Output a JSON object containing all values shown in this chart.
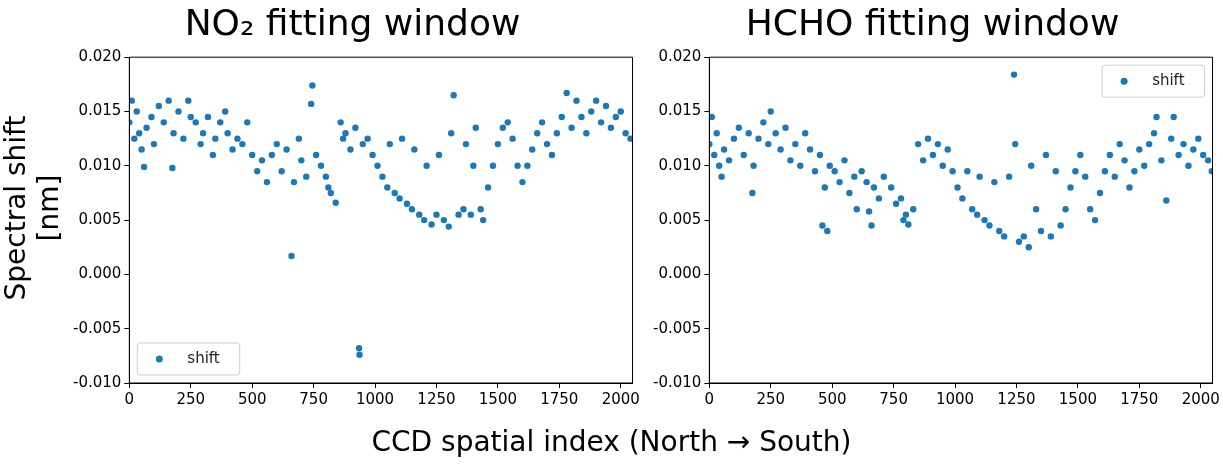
{
  "chart_data": [
    {
      "type": "scatter",
      "title": "NO₂ fitting window",
      "ylabel": "Spectral shift [nm]",
      "xlabel": "CCD spatial index (North → South)",
      "legend": "bottom left",
      "marker": "circle",
      "grid": false,
      "xlim": [
        0,
        2048
      ],
      "xticks": [
        0,
        250,
        500,
        750,
        1000,
        1250,
        1500,
        1750,
        2000
      ],
      "ylim": [
        -0.01,
        0.02
      ],
      "yticks": [
        {
          "value": -0.01,
          "label": "-0.010"
        },
        {
          "value": -0.005,
          "label": "-0.005"
        },
        {
          "value": 0,
          "label": "0.000"
        },
        {
          "value": 0.005,
          "label": "0.005"
        },
        {
          "value": 0.01,
          "label": "0.010"
        },
        {
          "value": 0.015,
          "label": "0.015"
        },
        {
          "value": 0.02,
          "label": "0.020"
        }
      ],
      "series": [
        {
          "name": "shift",
          "color": "#1f77b4",
          "x": [
            0,
            10,
            20,
            30,
            40,
            50,
            60,
            70,
            90,
            100,
            120,
            140,
            160,
            175,
            180,
            200,
            220,
            240,
            250,
            270,
            290,
            300,
            320,
            340,
            350,
            370,
            390,
            400,
            420,
            440,
            460,
            480,
            500,
            520,
            540,
            560,
            580,
            600,
            620,
            640,
            660,
            670,
            690,
            700,
            720,
            740,
            745,
            760,
            780,
            800,
            810,
            820,
            840,
            860,
            870,
            880,
            900,
            920,
            935,
            937,
            950,
            970,
            990,
            1010,
            1030,
            1050,
            1060,
            1080,
            1100,
            1110,
            1130,
            1150,
            1160,
            1180,
            1200,
            1210,
            1230,
            1250,
            1260,
            1280,
            1300,
            1310,
            1320,
            1340,
            1360,
            1370,
            1390,
            1400,
            1410,
            1430,
            1440,
            1460,
            1480,
            1500,
            1520,
            1540,
            1560,
            1580,
            1600,
            1620,
            1640,
            1660,
            1680,
            1700,
            1720,
            1740,
            1760,
            1780,
            1800,
            1820,
            1840,
            1860,
            1880,
            1900,
            1920,
            1940,
            1960,
            1980,
            2000,
            2020,
            2040
          ],
          "values": [
            0.014,
            0.016,
            0.0125,
            0.015,
            0.013,
            0.0115,
            0.0099,
            0.0135,
            0.0145,
            0.012,
            0.0155,
            0.014,
            0.016,
            0.0098,
            0.013,
            0.015,
            0.0125,
            0.016,
            0.0145,
            0.014,
            0.012,
            0.013,
            0.0145,
            0.011,
            0.0125,
            0.014,
            0.015,
            0.013,
            0.0115,
            0.0125,
            0.012,
            0.014,
            0.011,
            0.0095,
            0.0105,
            0.0085,
            0.011,
            0.012,
            0.0095,
            0.0115,
            0.0017,
            0.0085,
            0.0125,
            0.0105,
            0.009,
            0.0157,
            0.0174,
            0.011,
            0.01,
            0.009,
            0.008,
            0.0075,
            0.0066,
            0.014,
            0.0125,
            0.013,
            0.0115,
            0.0135,
            -0.0068,
            -0.0074,
            0.012,
            0.0125,
            0.011,
            0.01,
            0.009,
            0.008,
            0.012,
            0.0075,
            0.007,
            0.0125,
            0.0065,
            0.006,
            0.0115,
            0.0055,
            0.005,
            0.01,
            0.0046,
            0.0055,
            0.011,
            0.005,
            0.0044,
            0.013,
            0.0165,
            0.0055,
            0.006,
            0.012,
            0.0055,
            0.01,
            0.0135,
            0.006,
            0.005,
            0.008,
            0.01,
            0.012,
            0.0135,
            0.014,
            0.0125,
            0.01,
            0.0085,
            0.01,
            0.0115,
            0.013,
            0.014,
            0.012,
            0.011,
            0.013,
            0.0145,
            0.0167,
            0.0135,
            0.016,
            0.0145,
            0.013,
            0.015,
            0.016,
            0.014,
            0.0155,
            0.0135,
            0.0145,
            0.015,
            0.013,
            0.0125
          ]
        }
      ]
    },
    {
      "type": "scatter",
      "title": "HCHO fitting window",
      "legend": "top right",
      "marker": "circle",
      "grid": false,
      "xlim": [
        0,
        2048
      ],
      "xticks": [
        0,
        250,
        500,
        750,
        1000,
        1250,
        1500,
        1750,
        2000
      ],
      "ylim": [
        -0.01,
        0.02
      ],
      "yticks": [
        {
          "value": -0.01,
          "label": "-0.010"
        },
        {
          "value": -0.005,
          "label": "-0.005"
        },
        {
          "value": 0,
          "label": "0.000"
        },
        {
          "value": 0.005,
          "label": "0.005"
        },
        {
          "value": 0.01,
          "label": "0.010"
        },
        {
          "value": 0.015,
          "label": "0.015"
        },
        {
          "value": 0.02,
          "label": "0.020"
        }
      ],
      "series": [
        {
          "name": "shift",
          "color": "#1f77b4",
          "x": [
            0,
            10,
            20,
            30,
            40,
            50,
            60,
            80,
            100,
            120,
            140,
            160,
            175,
            180,
            200,
            220,
            240,
            250,
            270,
            290,
            310,
            330,
            350,
            370,
            390,
            410,
            430,
            450,
            460,
            470,
            480,
            490,
            510,
            530,
            550,
            570,
            590,
            600,
            620,
            640,
            650,
            660,
            670,
            690,
            710,
            740,
            760,
            780,
            790,
            800,
            810,
            830,
            850,
            870,
            890,
            910,
            930,
            950,
            970,
            990,
            1010,
            1030,
            1050,
            1070,
            1090,
            1100,
            1120,
            1140,
            1160,
            1180,
            1200,
            1220,
            1240,
            1245,
            1260,
            1280,
            1300,
            1310,
            1330,
            1350,
            1370,
            1390,
            1410,
            1430,
            1450,
            1470,
            1490,
            1510,
            1530,
            1550,
            1570,
            1590,
            1610,
            1630,
            1650,
            1670,
            1690,
            1710,
            1730,
            1750,
            1770,
            1790,
            1810,
            1820,
            1840,
            1860,
            1880,
            1890,
            1910,
            1930,
            1950,
            1970,
            1990,
            2010,
            2030,
            2045
          ],
          "values": [
            0.012,
            0.0145,
            0.011,
            0.013,
            0.01,
            0.009,
            0.0115,
            0.0105,
            0.0125,
            0.0135,
            0.011,
            0.013,
            0.0075,
            0.01,
            0.0125,
            0.014,
            0.012,
            0.015,
            0.013,
            0.0115,
            0.0135,
            0.0105,
            0.012,
            0.01,
            0.013,
            0.0115,
            0.0095,
            0.011,
            0.0045,
            0.008,
            0.004,
            0.01,
            0.0095,
            0.0085,
            0.0105,
            0.0075,
            0.009,
            0.006,
            0.0095,
            0.0085,
            0.0058,
            0.0045,
            0.008,
            0.007,
            0.009,
            0.008,
            0.0065,
            0.007,
            0.005,
            0.0055,
            0.0046,
            0.006,
            0.012,
            0.0105,
            0.0125,
            0.011,
            0.012,
            0.01,
            0.0115,
            0.0095,
            0.008,
            0.007,
            0.0095,
            0.006,
            0.0055,
            0.009,
            0.005,
            0.0045,
            0.0085,
            0.004,
            0.0035,
            0.009,
            0.0184,
            0.012,
            0.003,
            0.0035,
            0.0025,
            0.01,
            0.006,
            0.004,
            0.011,
            0.0035,
            0.0095,
            0.0045,
            0.006,
            0.008,
            0.0095,
            0.011,
            0.009,
            0.006,
            0.005,
            0.0075,
            0.0095,
            0.011,
            0.009,
            0.012,
            0.0105,
            0.008,
            0.0095,
            0.0115,
            0.01,
            0.012,
            0.013,
            0.0145,
            0.0105,
            0.0068,
            0.0125,
            0.0145,
            0.011,
            0.012,
            0.01,
            0.0115,
            0.0125,
            0.011,
            0.0105,
            0.0095
          ]
        }
      ]
    }
  ]
}
